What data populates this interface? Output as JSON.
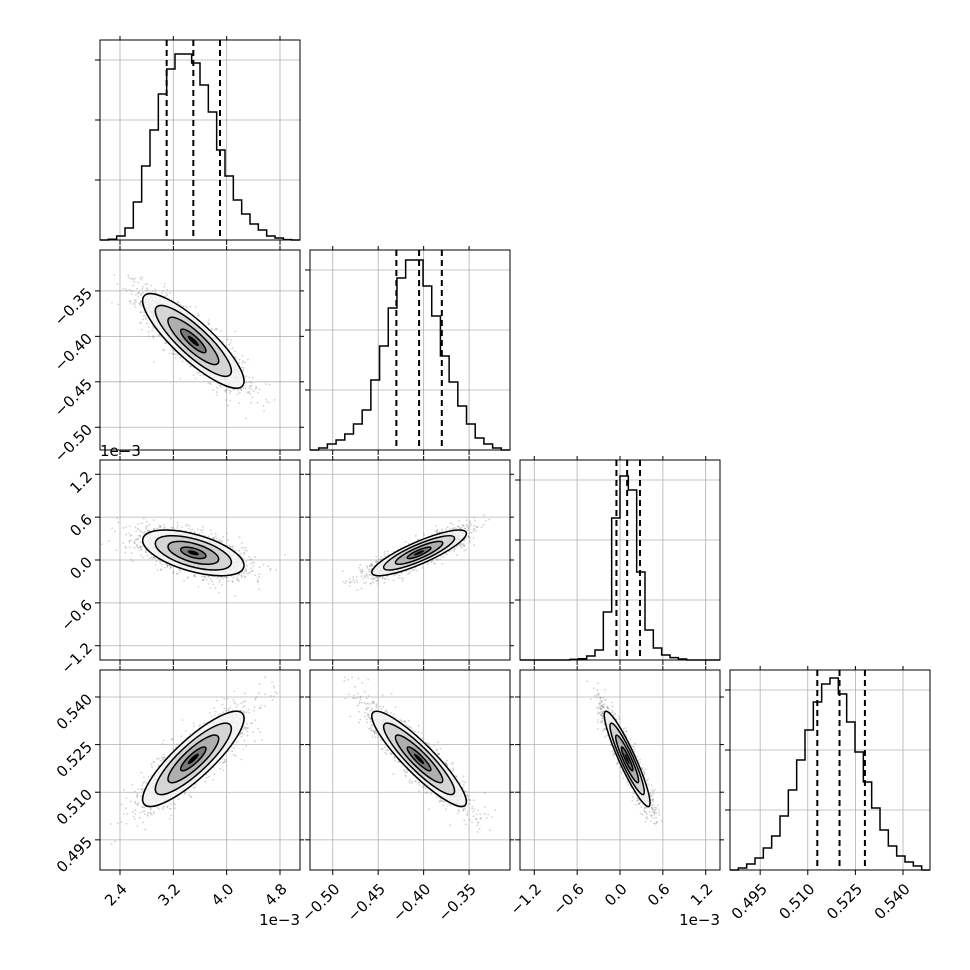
{
  "figure": {
    "type": "corner-plot",
    "background": "#ffffff",
    "hist_color": "#000000",
    "grid_color": "#b0b0b0",
    "scatter_color": "#7f7f7f",
    "contour_color": "#000000"
  },
  "chart_data": {
    "type": "corner",
    "grid": true,
    "parameters": [
      {
        "range": [
          2.1,
          5.1
        ],
        "ticks": [
          2.4,
          3.2,
          4.0,
          4.8
        ],
        "tick_labels": [
          "2.4",
          "3.2",
          "4.0",
          "4.8"
        ],
        "offset_label": "1e−3",
        "mean": 3.5,
        "sd": 0.38,
        "quantiles": [
          3.1,
          3.5,
          3.9
        ],
        "hist_levels": [
          0.0,
          0.004,
          0.02,
          0.06,
          0.19,
          0.37,
          0.55,
          0.73,
          0.855,
          0.93,
          0.93,
          0.885,
          0.775,
          0.64,
          0.45,
          0.32,
          0.2,
          0.13,
          0.08,
          0.05,
          0.02,
          0.01,
          0.002,
          0.0
        ],
        "yticks_norm": [
          0.3,
          0.6,
          0.9
        ]
      },
      {
        "range": [
          -0.525,
          -0.305
        ],
        "ticks": [
          -0.5,
          -0.45,
          -0.4,
          -0.35
        ],
        "tick_labels": [
          "−0.50",
          "−0.45",
          "−0.40",
          "−0.35"
        ],
        "offset_label": "",
        "mean": -0.405,
        "sd": 0.026,
        "quantiles": [
          -0.43,
          -0.405,
          -0.38
        ],
        "hist_levels": [
          0.0,
          0.01,
          0.03,
          0.05,
          0.08,
          0.13,
          0.2,
          0.35,
          0.52,
          0.71,
          0.86,
          0.95,
          0.95,
          0.82,
          0.67,
          0.47,
          0.34,
          0.22,
          0.13,
          0.06,
          0.03,
          0.01,
          0.0
        ],
        "yticks_norm": [
          0.3,
          0.6,
          0.9
        ]
      },
      {
        "range": [
          -1.4,
          1.4
        ],
        "ticks": [
          -1.2,
          -0.6,
          0.0,
          0.6,
          1.2
        ],
        "tick_labels": [
          "−1.2",
          "−0.6",
          "0.0",
          "0.6",
          "1.2"
        ],
        "offset_label": "1e−3",
        "mean": 0.1,
        "sd": 0.16,
        "quantiles": [
          -0.05,
          0.1,
          0.28
        ],
        "hist_levels": [
          0.0,
          0.0,
          0.0,
          0.0,
          0.0,
          0.0,
          0.003,
          0.006,
          0.02,
          0.05,
          0.24,
          0.71,
          0.92,
          0.85,
          0.44,
          0.15,
          0.06,
          0.025,
          0.012,
          0.005,
          0.0,
          0.0,
          0.0,
          0.0
        ],
        "yticks_norm": [
          0.3,
          0.6,
          0.9
        ]
      },
      {
        "range": [
          0.4855,
          0.5485
        ],
        "ticks": [
          0.495,
          0.51,
          0.525,
          0.54
        ],
        "tick_labels": [
          "0.495",
          "0.510",
          "0.525",
          "0.540"
        ],
        "offset_label": "",
        "mean": 0.5205,
        "sd": 0.0075,
        "quantiles": [
          0.513,
          0.52,
          0.528
        ],
        "hist_levels": [
          0.0,
          0.01,
          0.03,
          0.06,
          0.11,
          0.17,
          0.27,
          0.4,
          0.55,
          0.7,
          0.84,
          0.93,
          0.96,
          0.88,
          0.74,
          0.59,
          0.44,
          0.31,
          0.2,
          0.12,
          0.07,
          0.04,
          0.02,
          0.0
        ],
        "yticks_norm": [
          0.3,
          0.6,
          0.9
        ]
      }
    ],
    "correlations": {
      "1_0": -0.85,
      "2_0": -0.55,
      "2_1": 0.85,
      "3_0": 0.85,
      "3_1": -0.9,
      "3_2": -0.92
    },
    "contour_levels_sigma": [
      0.5,
      1.0,
      1.5,
      2.0
    ],
    "n_samples_per_panel": 2000
  }
}
